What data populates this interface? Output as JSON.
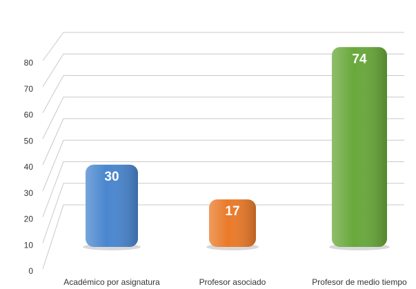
{
  "chart_data": {
    "type": "bar",
    "categories": [
      "Académico por asignatura",
      "Profesor asociado",
      "Profesor de medio tiempo"
    ],
    "values": [
      30,
      17,
      74
    ],
    "colors": [
      "#4a86cf",
      "#ea7a2a",
      "#69a83b"
    ],
    "ylim": [
      0,
      80
    ],
    "yticks": [
      0,
      10,
      20,
      30,
      40,
      50,
      60,
      70,
      80
    ],
    "grid": true
  }
}
